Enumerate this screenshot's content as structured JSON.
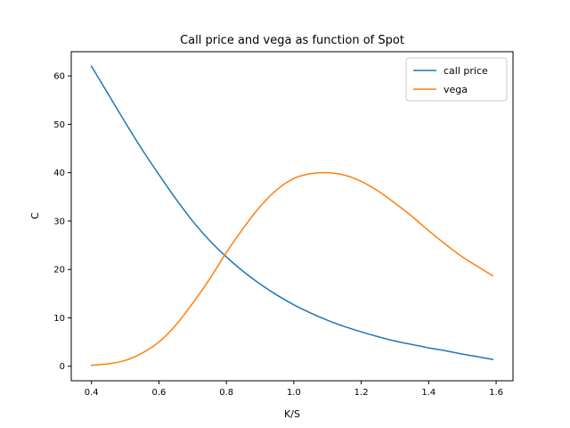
{
  "chart_data": {
    "type": "line",
    "title": "Call price and vega as function of Spot",
    "xlabel": "K/S",
    "ylabel": "C",
    "xlim": [
      0.34,
      1.65
    ],
    "ylim": [
      -3,
      65
    ],
    "xticks": [
      0.4,
      0.6,
      0.8,
      1.0,
      1.2,
      1.4,
      1.6
    ],
    "xtick_labels": [
      "0.4",
      "0.6",
      "0.8",
      "1.0",
      "1.2",
      "1.4",
      "1.6"
    ],
    "yticks": [
      0,
      10,
      20,
      30,
      40,
      50,
      60
    ],
    "ytick_labels": [
      "0",
      "10",
      "20",
      "30",
      "40",
      "50",
      "60"
    ],
    "grid": false,
    "legend_position": "top-right",
    "x": [
      0.4,
      0.45,
      0.5,
      0.55,
      0.6,
      0.65,
      0.7,
      0.75,
      0.8,
      0.85,
      0.9,
      0.95,
      1.0,
      1.05,
      1.1,
      1.15,
      1.2,
      1.25,
      1.3,
      1.35,
      1.4,
      1.45,
      1.5,
      1.55,
      1.59
    ],
    "series": [
      {
        "name": "call price",
        "color": "#1f77b4",
        "values": [
          62.0,
          56.2,
          50.4,
          44.8,
          39.6,
          34.6,
          30.0,
          26.0,
          22.6,
          19.6,
          17.0,
          14.7,
          12.7,
          11.0,
          9.5,
          8.2,
          7.1,
          6.1,
          5.2,
          4.5,
          3.8,
          3.2,
          2.5,
          1.9,
          1.4
        ]
      },
      {
        "name": "vega",
        "color": "#ff7f0e",
        "values": [
          0.2,
          0.5,
          1.2,
          2.7,
          5.0,
          8.5,
          13.0,
          18.0,
          23.5,
          28.5,
          33.0,
          36.5,
          38.8,
          39.8,
          40.0,
          39.5,
          38.2,
          36.2,
          33.7,
          31.0,
          28.0,
          25.2,
          22.6,
          20.4,
          18.7
        ]
      }
    ]
  }
}
